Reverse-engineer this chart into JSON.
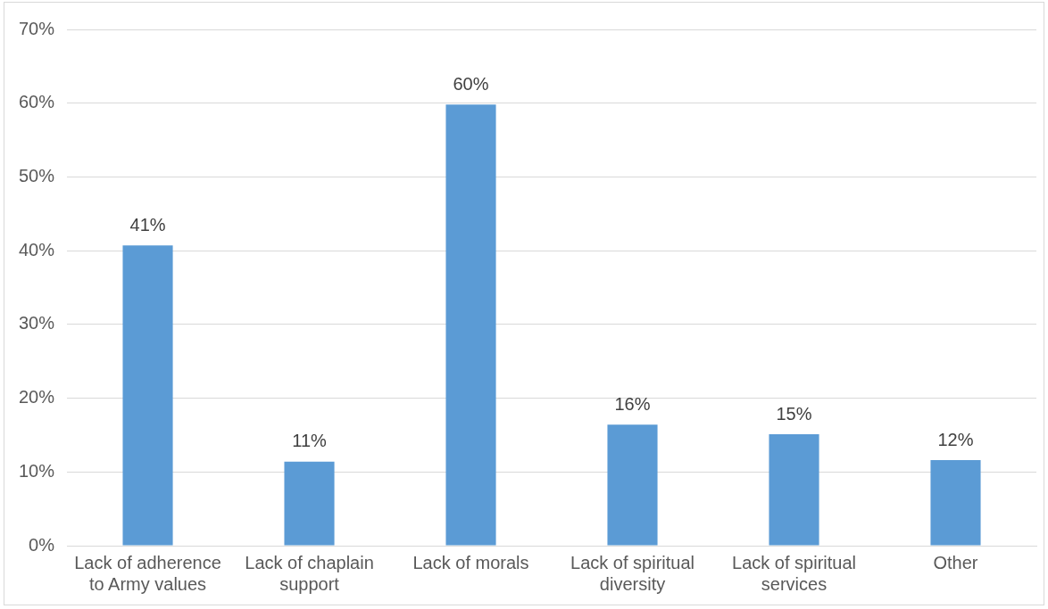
{
  "chart_data": {
    "type": "bar",
    "categories": [
      "Lack of adherence to Army values",
      "Lack of chaplain support",
      "Lack of morals",
      "Lack of spiritual diversity",
      "Lack of spiritual services",
      "Other"
    ],
    "values": [
      40.7,
      11.4,
      59.8,
      16.4,
      15.1,
      11.6
    ],
    "value_labels": [
      "41%",
      "11%",
      "60%",
      "16%",
      "15%",
      "12%"
    ],
    "color": "#5b9bd5",
    "ylim": [
      0,
      70
    ],
    "yticks": [
      {
        "value": 0,
        "label": "0%"
      },
      {
        "value": 10,
        "label": "10%"
      },
      {
        "value": 20,
        "label": "20%"
      },
      {
        "value": 30,
        "label": "30%"
      },
      {
        "value": 40,
        "label": "40%"
      },
      {
        "value": 50,
        "label": "50%"
      },
      {
        "value": 60,
        "label": "60%"
      },
      {
        "value": 70,
        "label": "70%"
      }
    ],
    "grid": "y",
    "legend": false
  }
}
